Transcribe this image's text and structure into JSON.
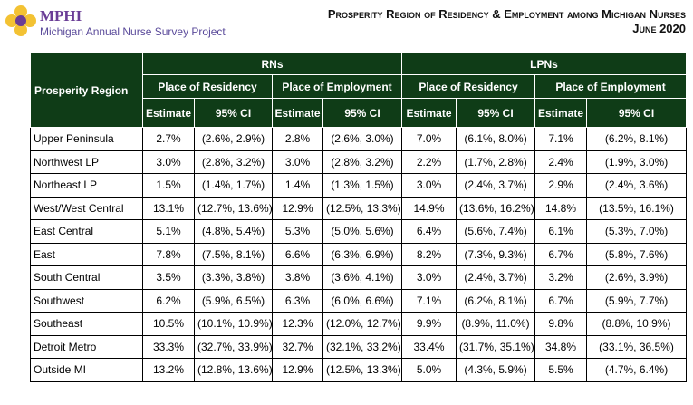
{
  "header": {
    "logo": "MPHI",
    "project": "Michigan Annual Nurse Survey Project",
    "title": "Prosperity Region of Residency & Employment among Michigan Nurses",
    "date": "June 2020"
  },
  "table": {
    "region_header": "Prosperity Region",
    "groups": [
      {
        "label": "RNs",
        "subgroups": [
          {
            "label": "Place of Residency",
            "columns": [
              "Estimate",
              "95% CI"
            ]
          },
          {
            "label": "Place of Employment",
            "columns": [
              "Estimate",
              "95% CI"
            ]
          }
        ]
      },
      {
        "label": "LPNs",
        "subgroups": [
          {
            "label": "Place of Residency",
            "columns": [
              "Estimate",
              "95% CI"
            ]
          },
          {
            "label": "Place of Employment",
            "columns": [
              "Estimate",
              "95% CI"
            ]
          }
        ]
      }
    ],
    "rows": [
      [
        "Upper Peninsula",
        "2.7%",
        "(2.6%, 2.9%)",
        "2.8%",
        "(2.6%, 3.0%)",
        "7.0%",
        "(6.1%, 8.0%)",
        "7.1%",
        "(6.2%, 8.1%)"
      ],
      [
        "Northwest LP",
        "3.0%",
        "(2.8%, 3.2%)",
        "3.0%",
        "(2.8%, 3.2%)",
        "2.2%",
        "(1.7%, 2.8%)",
        "2.4%",
        "(1.9%, 3.0%)"
      ],
      [
        "Northeast LP",
        "1.5%",
        "(1.4%, 1.7%)",
        "1.4%",
        "(1.3%, 1.5%)",
        "3.0%",
        "(2.4%, 3.7%)",
        "2.9%",
        "(2.4%, 3.6%)"
      ],
      [
        "West/West Central",
        "13.1%",
        "(12.7%, 13.6%)",
        "12.9%",
        "(12.5%, 13.3%)",
        "14.9%",
        "(13.6%, 16.2%)",
        "14.8%",
        "(13.5%, 16.1%)"
      ],
      [
        "East Central",
        "5.1%",
        "(4.8%, 5.4%)",
        "5.3%",
        "(5.0%, 5.6%)",
        "6.4%",
        "(5.6%, 7.4%)",
        "6.1%",
        "(5.3%, 7.0%)"
      ],
      [
        "East",
        "7.8%",
        "(7.5%, 8.1%)",
        "6.6%",
        "(6.3%, 6.9%)",
        "8.2%",
        "(7.3%, 9.3%)",
        "6.7%",
        "(5.8%, 7.6%)"
      ],
      [
        "South Central",
        "3.5%",
        "(3.3%, 3.8%)",
        "3.8%",
        "(3.6%, 4.1%)",
        "3.0%",
        "(2.4%, 3.7%)",
        "3.2%",
        "(2.6%, 3.9%)"
      ],
      [
        "Southwest",
        "6.2%",
        "(5.9%, 6.5%)",
        "6.3%",
        "(6.0%, 6.6%)",
        "7.1%",
        "(6.2%, 8.1%)",
        "6.7%",
        "(5.9%, 7.7%)"
      ],
      [
        "Southeast",
        "10.5%",
        "(10.1%, 10.9%)",
        "12.3%",
        "(12.0%, 12.7%)",
        "9.9%",
        "(8.9%, 11.0%)",
        "9.8%",
        "(8.8%, 10.9%)"
      ],
      [
        "Detroit Metro",
        "33.3%",
        "(32.7%, 33.9%)",
        "32.7%",
        "(32.1%, 33.2%)",
        "33.4%",
        "(31.7%, 35.1%)",
        "34.8%",
        "(33.1%, 36.5%)"
      ],
      [
        "Outside MI",
        "13.2%",
        "(12.8%, 13.6%)",
        "12.9%",
        "(12.5%, 13.3%)",
        "5.0%",
        "(4.3%, 5.9%)",
        "5.5%",
        "(4.7%, 6.4%)"
      ]
    ]
  }
}
